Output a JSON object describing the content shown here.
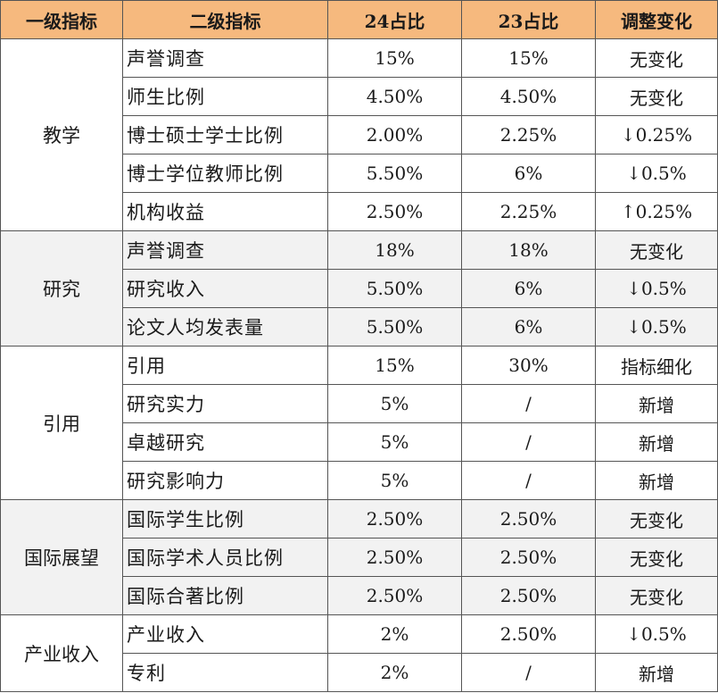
{
  "headers": {
    "level1": "一级指标",
    "level2": "二级指标",
    "ratio24": "24占比",
    "ratio23": "23占比",
    "change": "调整变化"
  },
  "groups": [
    {
      "category": "教学",
      "rows": [
        {
          "indicator": "声誉调查",
          "r24": "15%",
          "r23": "15%",
          "change": "无变化"
        },
        {
          "indicator": "师生比例",
          "r24": "4.50%",
          "r23": "4.50%",
          "change": "无变化"
        },
        {
          "indicator": "博士硕士学士比例",
          "r24": "2.00%",
          "r23": "2.25%",
          "change": "↓0.25%"
        },
        {
          "indicator": "博士学位教师比例",
          "r24": "5.50%",
          "r23": "6%",
          "change": "↓0.5%"
        },
        {
          "indicator": "机构收益",
          "r24": "2.50%",
          "r23": "2.25%",
          "change": "↑0.25%"
        }
      ]
    },
    {
      "category": "研究",
      "rows": [
        {
          "indicator": "声誉调查",
          "r24": "18%",
          "r23": "18%",
          "change": "无变化"
        },
        {
          "indicator": "研究收入",
          "r24": "5.50%",
          "r23": "6%",
          "change": "↓0.5%"
        },
        {
          "indicator": "论文人均发表量",
          "r24": "5.50%",
          "r23": "6%",
          "change": "↓0.5%"
        }
      ]
    },
    {
      "category": "引用",
      "rows": [
        {
          "indicator": "引用",
          "r24": "15%",
          "r23": "30%",
          "change": "指标细化"
        },
        {
          "indicator": "研究实力",
          "r24": "5%",
          "r23": "/",
          "change": "新增"
        },
        {
          "indicator": "卓越研究",
          "r24": "5%",
          "r23": "/",
          "change": "新增"
        },
        {
          "indicator": "研究影响力",
          "r24": "5%",
          "r23": "/",
          "change": "新增"
        }
      ]
    },
    {
      "category": "国际展望",
      "rows": [
        {
          "indicator": "国际学生比例",
          "r24": "2.50%",
          "r23": "2.50%",
          "change": "无变化"
        },
        {
          "indicator": "国际学术人员比例",
          "r24": "2.50%",
          "r23": "2.50%",
          "change": "无变化"
        },
        {
          "indicator": "国际合著比例",
          "r24": "2.50%",
          "r23": "2.50%",
          "change": "无变化"
        }
      ]
    },
    {
      "category": "产业收入",
      "rows": [
        {
          "indicator": "产业收入",
          "r24": "2%",
          "r23": "2.50%",
          "change": "↓0.5%"
        },
        {
          "indicator": "专利",
          "r24": "2%",
          "r23": "/",
          "change": "新增"
        }
      ]
    }
  ]
}
